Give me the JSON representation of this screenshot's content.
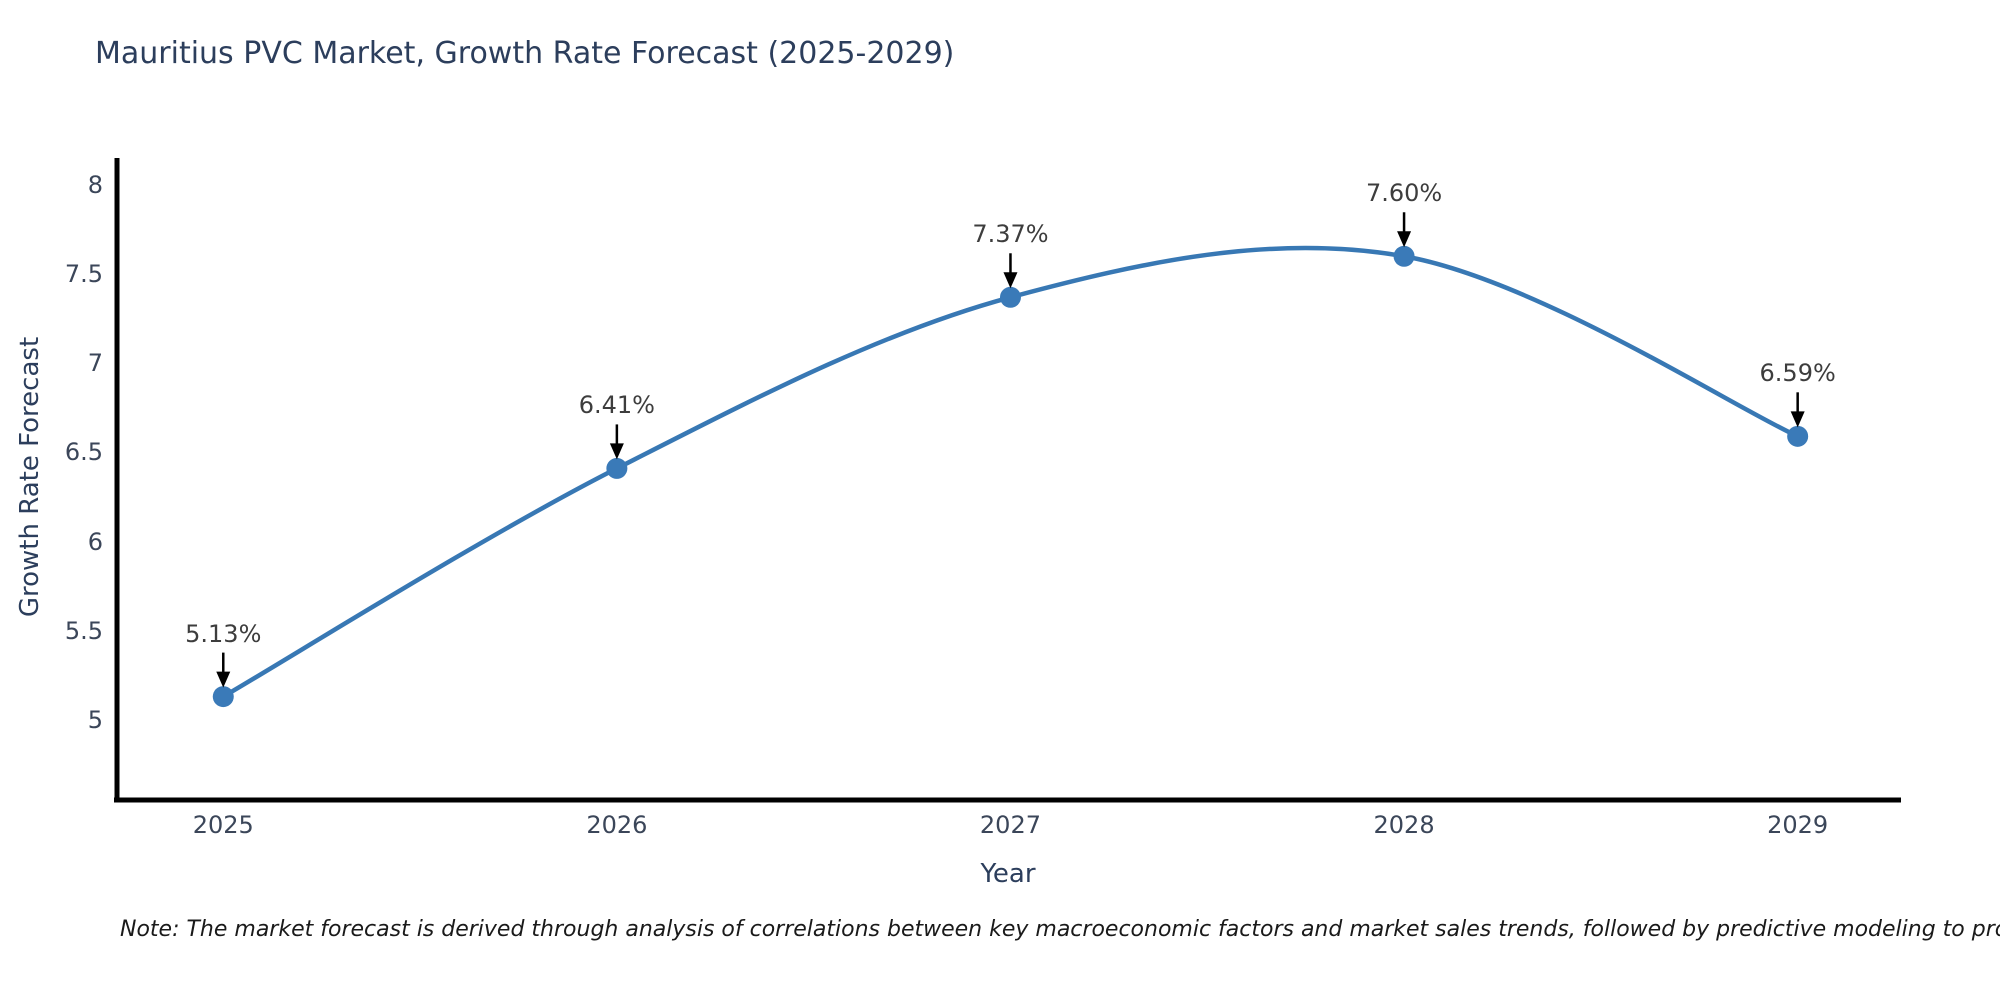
{
  "chart_data": {
    "type": "line",
    "title": "Mauritius PVC Market, Growth Rate Forecast (2025-2029)",
    "xlabel": "Year",
    "ylabel": "Growth Rate Forecast",
    "x": [
      2025,
      2026,
      2027,
      2028,
      2029
    ],
    "y": [
      5.13,
      6.41,
      7.37,
      7.6,
      6.59
    ],
    "point_labels": [
      "5.13%",
      "6.41%",
      "7.37%",
      "7.60%",
      "6.59%"
    ],
    "x_tick_labels": [
      "2025",
      "2026",
      "2027",
      "2028",
      "2029"
    ],
    "y_ticks": [
      5,
      5.5,
      6,
      6.5,
      7,
      7.5,
      8
    ],
    "xlim": [
      2024.73,
      2029.26
    ],
    "ylim": [
      4.55,
      8.14
    ],
    "grid": false,
    "legend": "none",
    "line_shape": "spline",
    "line_color": "#3878b4",
    "marker_color": "#3a7ab8",
    "axis_color": "#000000",
    "annotation_arrow_color": "#000000",
    "annotation_text_color": "#3d3d3d",
    "title_color": "#2c3e5c",
    "tick_color": "#3b4659"
  },
  "note": "Note: The market forecast is derived through analysis of correlations between key macroeconomic factors and market sales trends, followed by predictive modeling to project future sales"
}
